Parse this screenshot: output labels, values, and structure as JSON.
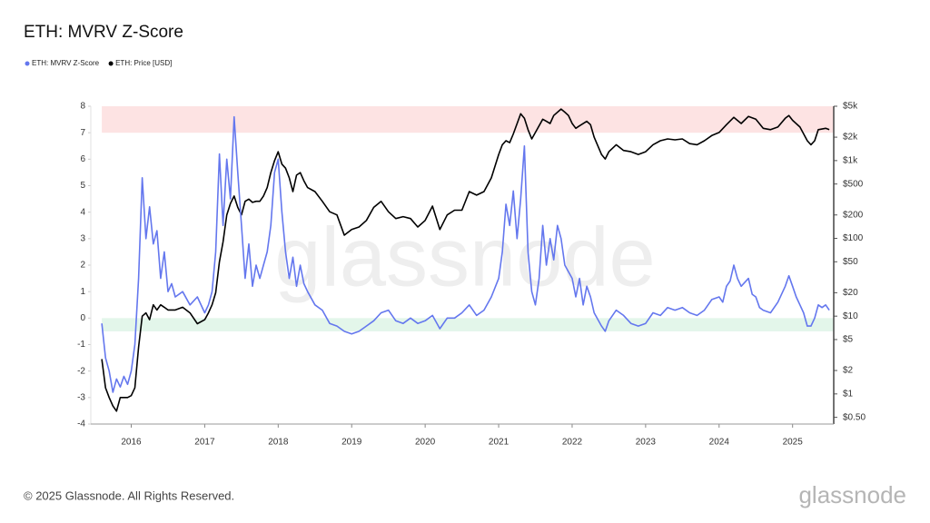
{
  "chart_data": {
    "type": "line",
    "title": "ETH: MVRV Z-Score",
    "footer": "© 2025 Glassnode. All Rights Reserved.",
    "logo": "glassnode",
    "watermark": "glassnode",
    "xlim": [
      2015.45,
      2025.56
    ],
    "xticks": [
      2016,
      2017,
      2018,
      2019,
      2020,
      2021,
      2022,
      2023,
      2024,
      2025
    ],
    "ylim": [
      -4,
      8
    ],
    "yticks": [
      -4,
      -3,
      -2,
      -1,
      0,
      1,
      2,
      3,
      4,
      5,
      6,
      7,
      8
    ],
    "y2lim": [
      0.41,
      5000
    ],
    "y2scale": "log",
    "y2ticks": [
      {
        "value": 5000,
        "label": "$5k"
      },
      {
        "value": 2000,
        "label": "$2k"
      },
      {
        "value": 1000,
        "label": "$1k"
      },
      {
        "value": 500,
        "label": "$500"
      },
      {
        "value": 200,
        "label": "$200"
      },
      {
        "value": 100,
        "label": "$100"
      },
      {
        "value": 50,
        "label": "$50"
      },
      {
        "value": 20,
        "label": "$20"
      },
      {
        "value": 10,
        "label": "$10"
      },
      {
        "value": 5,
        "label": "$5"
      },
      {
        "value": 2,
        "label": "$2"
      },
      {
        "value": 1,
        "label": "$1"
      },
      {
        "value": 0.5,
        "label": "$0.50"
      }
    ],
    "bands": [
      {
        "from": 7,
        "to": 8,
        "color": "#fde3e3"
      },
      {
        "from": -0.5,
        "to": 0,
        "color": "#e3f6ea"
      }
    ],
    "series": [
      {
        "name": "ETH: MVRV Z-Score",
        "color": "#6477ee",
        "x": [
          2015.6,
          2015.65,
          2015.7,
          2015.75,
          2015.8,
          2015.85,
          2015.9,
          2015.95,
          2016,
          2016.05,
          2016.1,
          2016.15,
          2016.2,
          2016.25,
          2016.3,
          2016.35,
          2016.4,
          2016.45,
          2016.5,
          2016.55,
          2016.6,
          2016.7,
          2016.8,
          2016.9,
          2017,
          2017.05,
          2017.1,
          2017.15,
          2017.2,
          2017.25,
          2017.3,
          2017.35,
          2017.4,
          2017.45,
          2017.5,
          2017.55,
          2017.6,
          2017.65,
          2017.7,
          2017.75,
          2017.8,
          2017.85,
          2017.9,
          2017.95,
          2018,
          2018.05,
          2018.1,
          2018.15,
          2018.2,
          2018.25,
          2018.3,
          2018.35,
          2018.4,
          2018.5,
          2018.6,
          2018.7,
          2018.8,
          2018.9,
          2019,
          2019.1,
          2019.2,
          2019.3,
          2019.4,
          2019.5,
          2019.6,
          2019.7,
          2019.8,
          2019.9,
          2020,
          2020.1,
          2020.2,
          2020.3,
          2020.4,
          2020.5,
          2020.6,
          2020.7,
          2020.8,
          2020.9,
          2021,
          2021.05,
          2021.1,
          2021.15,
          2021.2,
          2021.25,
          2021.3,
          2021.35,
          2021.4,
          2021.45,
          2021.5,
          2021.55,
          2021.6,
          2021.65,
          2021.7,
          2021.75,
          2021.8,
          2021.85,
          2021.9,
          2022,
          2022.05,
          2022.1,
          2022.15,
          2022.2,
          2022.25,
          2022.3,
          2022.4,
          2022.45,
          2022.5,
          2022.6,
          2022.7,
          2022.8,
          2022.9,
          2023,
          2023.1,
          2023.2,
          2023.3,
          2023.4,
          2023.5,
          2023.6,
          2023.7,
          2023.8,
          2023.9,
          2024,
          2024.05,
          2024.1,
          2024.15,
          2024.2,
          2024.25,
          2024.3,
          2024.4,
          2024.45,
          2024.5,
          2024.55,
          2024.6,
          2024.7,
          2024.8,
          2024.9,
          2024.95,
          2025,
          2025.05,
          2025.1,
          2025.15,
          2025.2,
          2025.25,
          2025.3,
          2025.35,
          2025.4,
          2025.45,
          2025.5
        ],
        "values": [
          -0.2,
          -1.5,
          -2.0,
          -2.8,
          -2.3,
          -2.6,
          -2.2,
          -2.5,
          -2.0,
          -1.0,
          1.5,
          5.3,
          3.0,
          4.2,
          2.8,
          3.3,
          1.5,
          2.5,
          1.0,
          1.3,
          0.8,
          1.0,
          0.5,
          0.8,
          0.2,
          0.5,
          1.0,
          2.5,
          6.2,
          3.5,
          6.0,
          4.5,
          7.6,
          5.5,
          3.5,
          1.5,
          2.8,
          1.2,
          2.0,
          1.5,
          2.0,
          2.5,
          3.5,
          5.5,
          6.0,
          4.0,
          2.5,
          1.5,
          2.3,
          1.2,
          2.0,
          1.3,
          1.0,
          0.5,
          0.3,
          -0.2,
          -0.3,
          -0.5,
          -0.6,
          -0.5,
          -0.3,
          -0.1,
          0.2,
          0.3,
          -0.1,
          -0.2,
          0.0,
          -0.2,
          -0.1,
          0.1,
          -0.4,
          0.0,
          0.0,
          0.2,
          0.5,
          0.1,
          0.3,
          0.8,
          1.5,
          2.5,
          4.3,
          3.5,
          4.8,
          3.0,
          4.5,
          6.5,
          2.5,
          1.0,
          0.5,
          1.5,
          3.5,
          2.0,
          3.0,
          2.2,
          3.5,
          3.0,
          2.0,
          1.5,
          0.8,
          1.5,
          0.5,
          1.2,
          0.8,
          0.2,
          -0.3,
          -0.5,
          -0.1,
          0.3,
          0.1,
          -0.2,
          -0.3,
          -0.2,
          0.2,
          0.1,
          0.4,
          0.3,
          0.4,
          0.2,
          0.1,
          0.3,
          0.7,
          0.8,
          0.6,
          1.2,
          1.4,
          2.0,
          1.5,
          1.2,
          1.5,
          0.9,
          0.8,
          0.4,
          0.3,
          0.2,
          0.6,
          1.2,
          1.6,
          1.2,
          0.8,
          0.5,
          0.2,
          -0.3,
          -0.3,
          0.0,
          0.5,
          0.4,
          0.5,
          0.3
        ]
      },
      {
        "name": "ETH: Price [USD]",
        "color": "#000000",
        "axis": "y2",
        "x": [
          2015.6,
          2015.65,
          2015.7,
          2015.75,
          2015.8,
          2015.85,
          2015.9,
          2015.95,
          2016,
          2016.05,
          2016.1,
          2016.15,
          2016.2,
          2016.25,
          2016.3,
          2016.35,
          2016.4,
          2016.45,
          2016.5,
          2016.6,
          2016.7,
          2016.8,
          2016.9,
          2017,
          2017.05,
          2017.1,
          2017.15,
          2017.2,
          2017.25,
          2017.3,
          2017.35,
          2017.4,
          2017.45,
          2017.5,
          2017.55,
          2017.6,
          2017.65,
          2017.7,
          2017.75,
          2017.8,
          2017.85,
          2017.9,
          2017.95,
          2018,
          2018.05,
          2018.1,
          2018.15,
          2018.2,
          2018.25,
          2018.3,
          2018.35,
          2018.4,
          2018.5,
          2018.6,
          2018.7,
          2018.8,
          2018.9,
          2019,
          2019.1,
          2019.2,
          2019.3,
          2019.4,
          2019.5,
          2019.6,
          2019.7,
          2019.8,
          2019.9,
          2020,
          2020.1,
          2020.2,
          2020.3,
          2020.4,
          2020.5,
          2020.6,
          2020.7,
          2020.8,
          2020.9,
          2021,
          2021.05,
          2021.1,
          2021.15,
          2021.2,
          2021.3,
          2021.35,
          2021.4,
          2021.45,
          2021.5,
          2021.6,
          2021.65,
          2021.7,
          2021.75,
          2021.85,
          2021.9,
          2021.95,
          2022,
          2022.05,
          2022.1,
          2022.2,
          2022.25,
          2022.3,
          2022.4,
          2022.45,
          2022.5,
          2022.6,
          2022.7,
          2022.8,
          2022.9,
          2023,
          2023.1,
          2023.2,
          2023.3,
          2023.4,
          2023.5,
          2023.6,
          2023.7,
          2023.8,
          2023.9,
          2024,
          2024.1,
          2024.2,
          2024.3,
          2024.4,
          2024.5,
          2024.6,
          2024.7,
          2024.8,
          2024.9,
          2024.95,
          2025,
          2025.1,
          2025.2,
          2025.25,
          2025.3,
          2025.35,
          2025.45,
          2025.5
        ],
        "values": [
          2.8,
          1.2,
          0.9,
          0.7,
          0.6,
          0.9,
          0.9,
          0.9,
          0.95,
          1.2,
          4,
          10,
          11,
          9,
          14,
          12,
          14,
          13,
          12,
          12,
          13,
          11,
          8,
          9,
          11,
          14,
          20,
          50,
          90,
          200,
          280,
          350,
          250,
          200,
          300,
          320,
          290,
          300,
          300,
          350,
          450,
          700,
          1000,
          1300,
          900,
          800,
          600,
          400,
          650,
          700,
          550,
          450,
          400,
          300,
          220,
          200,
          110,
          130,
          140,
          170,
          250,
          300,
          220,
          180,
          190,
          180,
          140,
          170,
          260,
          130,
          200,
          230,
          230,
          400,
          360,
          400,
          600,
          1200,
          1600,
          1800,
          1700,
          2200,
          4000,
          3500,
          2500,
          1900,
          2300,
          3400,
          3200,
          3000,
          3800,
          4600,
          4200,
          3800,
          3000,
          2600,
          2800,
          3200,
          2900,
          2000,
          1200,
          1050,
          1300,
          1600,
          1350,
          1300,
          1200,
          1300,
          1600,
          1800,
          1900,
          1850,
          1900,
          1650,
          1600,
          1800,
          2100,
          2300,
          2900,
          3600,
          3000,
          3700,
          3400,
          2600,
          2500,
          2700,
          3500,
          3800,
          3300,
          2700,
          1800,
          1600,
          1800,
          2500,
          2600,
          2500
        ]
      }
    ]
  }
}
